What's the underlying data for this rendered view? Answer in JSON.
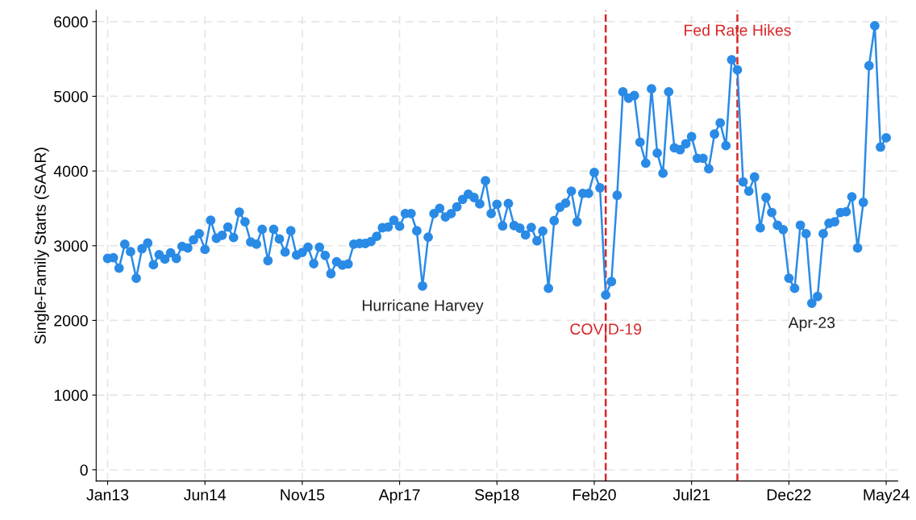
{
  "chart_data": {
    "type": "line",
    "ylabel": "Single-Family Starts (SAAR)",
    "x": [
      "2013-01",
      "2013-02",
      "2013-03",
      "2013-04",
      "2013-05",
      "2013-06",
      "2013-07",
      "2013-08",
      "2013-09",
      "2013-10",
      "2013-11",
      "2013-12",
      "2014-01",
      "2014-02",
      "2014-03",
      "2014-04",
      "2014-05",
      "2014-06",
      "2014-07",
      "2014-08",
      "2014-09",
      "2014-10",
      "2014-11",
      "2014-12",
      "2015-01",
      "2015-02",
      "2015-03",
      "2015-04",
      "2015-05",
      "2015-06",
      "2015-07",
      "2015-08",
      "2015-09",
      "2015-10",
      "2015-11",
      "2015-12",
      "2016-01",
      "2016-02",
      "2016-03",
      "2016-04",
      "2016-05",
      "2016-06",
      "2016-07",
      "2016-08",
      "2016-09",
      "2016-10",
      "2016-11",
      "2016-12",
      "2017-01",
      "2017-02",
      "2017-03",
      "2017-04",
      "2017-05",
      "2017-06",
      "2017-07",
      "2017-08",
      "2017-09",
      "2017-10",
      "2017-11",
      "2017-12",
      "2018-01",
      "2018-02",
      "2018-03",
      "2018-04",
      "2018-05",
      "2018-06",
      "2018-07",
      "2018-08",
      "2018-09",
      "2018-10",
      "2018-11",
      "2018-12",
      "2019-01",
      "2019-02",
      "2019-03",
      "2019-04",
      "2019-05",
      "2019-06",
      "2019-07",
      "2019-08",
      "2019-09",
      "2019-10",
      "2019-11",
      "2019-12",
      "2020-01",
      "2020-02",
      "2020-03",
      "2020-04",
      "2020-05",
      "2020-06",
      "2020-07",
      "2020-08",
      "2020-09",
      "2020-10",
      "2020-11",
      "2020-12",
      "2021-01",
      "2021-02",
      "2021-03",
      "2021-04",
      "2021-05",
      "2021-06",
      "2021-07",
      "2021-08",
      "2021-09",
      "2021-10",
      "2021-11",
      "2021-12",
      "2022-01",
      "2022-02",
      "2022-03",
      "2022-04",
      "2022-05",
      "2022-06",
      "2022-07",
      "2022-08",
      "2022-09",
      "2022-10",
      "2022-11",
      "2022-12",
      "2023-01",
      "2023-02",
      "2023-03",
      "2023-04",
      "2023-05",
      "2023-06",
      "2023-07",
      "2023-08",
      "2023-09",
      "2023-10",
      "2023-11",
      "2023-12",
      "2024-01",
      "2024-02",
      "2024-03",
      "2024-04",
      "2024-05"
    ],
    "series": [
      {
        "color": "#2a8be6",
        "values": [
          2830,
          2840,
          2700,
          3020,
          2920,
          2565,
          2960,
          3035,
          2745,
          2880,
          2820,
          2905,
          2830,
          2990,
          2970,
          3080,
          3160,
          2950,
          3340,
          3100,
          3140,
          3250,
          3110,
          3450,
          3320,
          3050,
          3020,
          3220,
          2800,
          3220,
          3090,
          2915,
          3200,
          2875,
          2910,
          2980,
          2760,
          2980,
          2870,
          2625,
          2785,
          2740,
          2755,
          3020,
          3030,
          3030,
          3055,
          3125,
          3240,
          3250,
          3340,
          3260,
          3430,
          3430,
          3200,
          2460,
          3115,
          3430,
          3500,
          3385,
          3430,
          3520,
          3620,
          3690,
          3645,
          3560,
          3870,
          3430,
          3555,
          3265,
          3565,
          3270,
          3235,
          3145,
          3245,
          3065,
          3195,
          2430,
          3335,
          3515,
          3570,
          3730,
          3320,
          3700,
          3700,
          3980,
          3775,
          2340,
          2520,
          3675,
          5060,
          4975,
          5010,
          4385,
          4105,
          5100,
          4240,
          3970,
          5060,
          4310,
          4285,
          4365,
          4460,
          4170,
          4170,
          4030,
          4495,
          4645,
          4340,
          5490,
          5355,
          3855,
          3730,
          3920,
          3240,
          3645,
          3445,
          3275,
          3215,
          2565,
          2430,
          3275,
          3160,
          2230,
          2320,
          3160,
          3300,
          3320,
          3445,
          3455,
          3655,
          2970,
          3580,
          5410,
          5945,
          4320,
          4445
        ]
      }
    ],
    "xlim": [
      "2012-11",
      "2024-07"
    ],
    "xticks": [
      {
        "value": "2013-01",
        "label": "Jan13"
      },
      {
        "value": "2014-06",
        "label": "Jun14"
      },
      {
        "value": "2015-11",
        "label": "Nov15"
      },
      {
        "value": "2017-04",
        "label": "Apr17"
      },
      {
        "value": "2018-09",
        "label": "Sep18"
      },
      {
        "value": "2020-02",
        "label": "Feb20"
      },
      {
        "value": "2021-07",
        "label": "Jul21"
      },
      {
        "value": "2022-12",
        "label": "Dec22"
      },
      {
        "value": "2024-05",
        "label": "May24"
      }
    ],
    "ylim": [
      -150,
      6150
    ],
    "yticks": [
      0,
      1000,
      2000,
      3000,
      4000,
      5000,
      6000
    ],
    "ref_lines": [
      {
        "axis": "x",
        "value": "2020-04",
        "label": "COVID-19",
        "color": "#d62728",
        "line_style": "dashed"
      },
      {
        "axis": "x",
        "value": "2022-03",
        "label": "Fed Rate Hikes",
        "color": "#d62728",
        "line_style": "dashed"
      }
    ],
    "annotations": [
      {
        "text": "Hurricane Harvey",
        "x": "2017-08",
        "y": 2460
      },
      {
        "text": "Apr-23",
        "x": "2023-04",
        "y": 2230
      }
    ],
    "grid": true,
    "marker": "circle",
    "line_style": "solid",
    "legend": false
  }
}
